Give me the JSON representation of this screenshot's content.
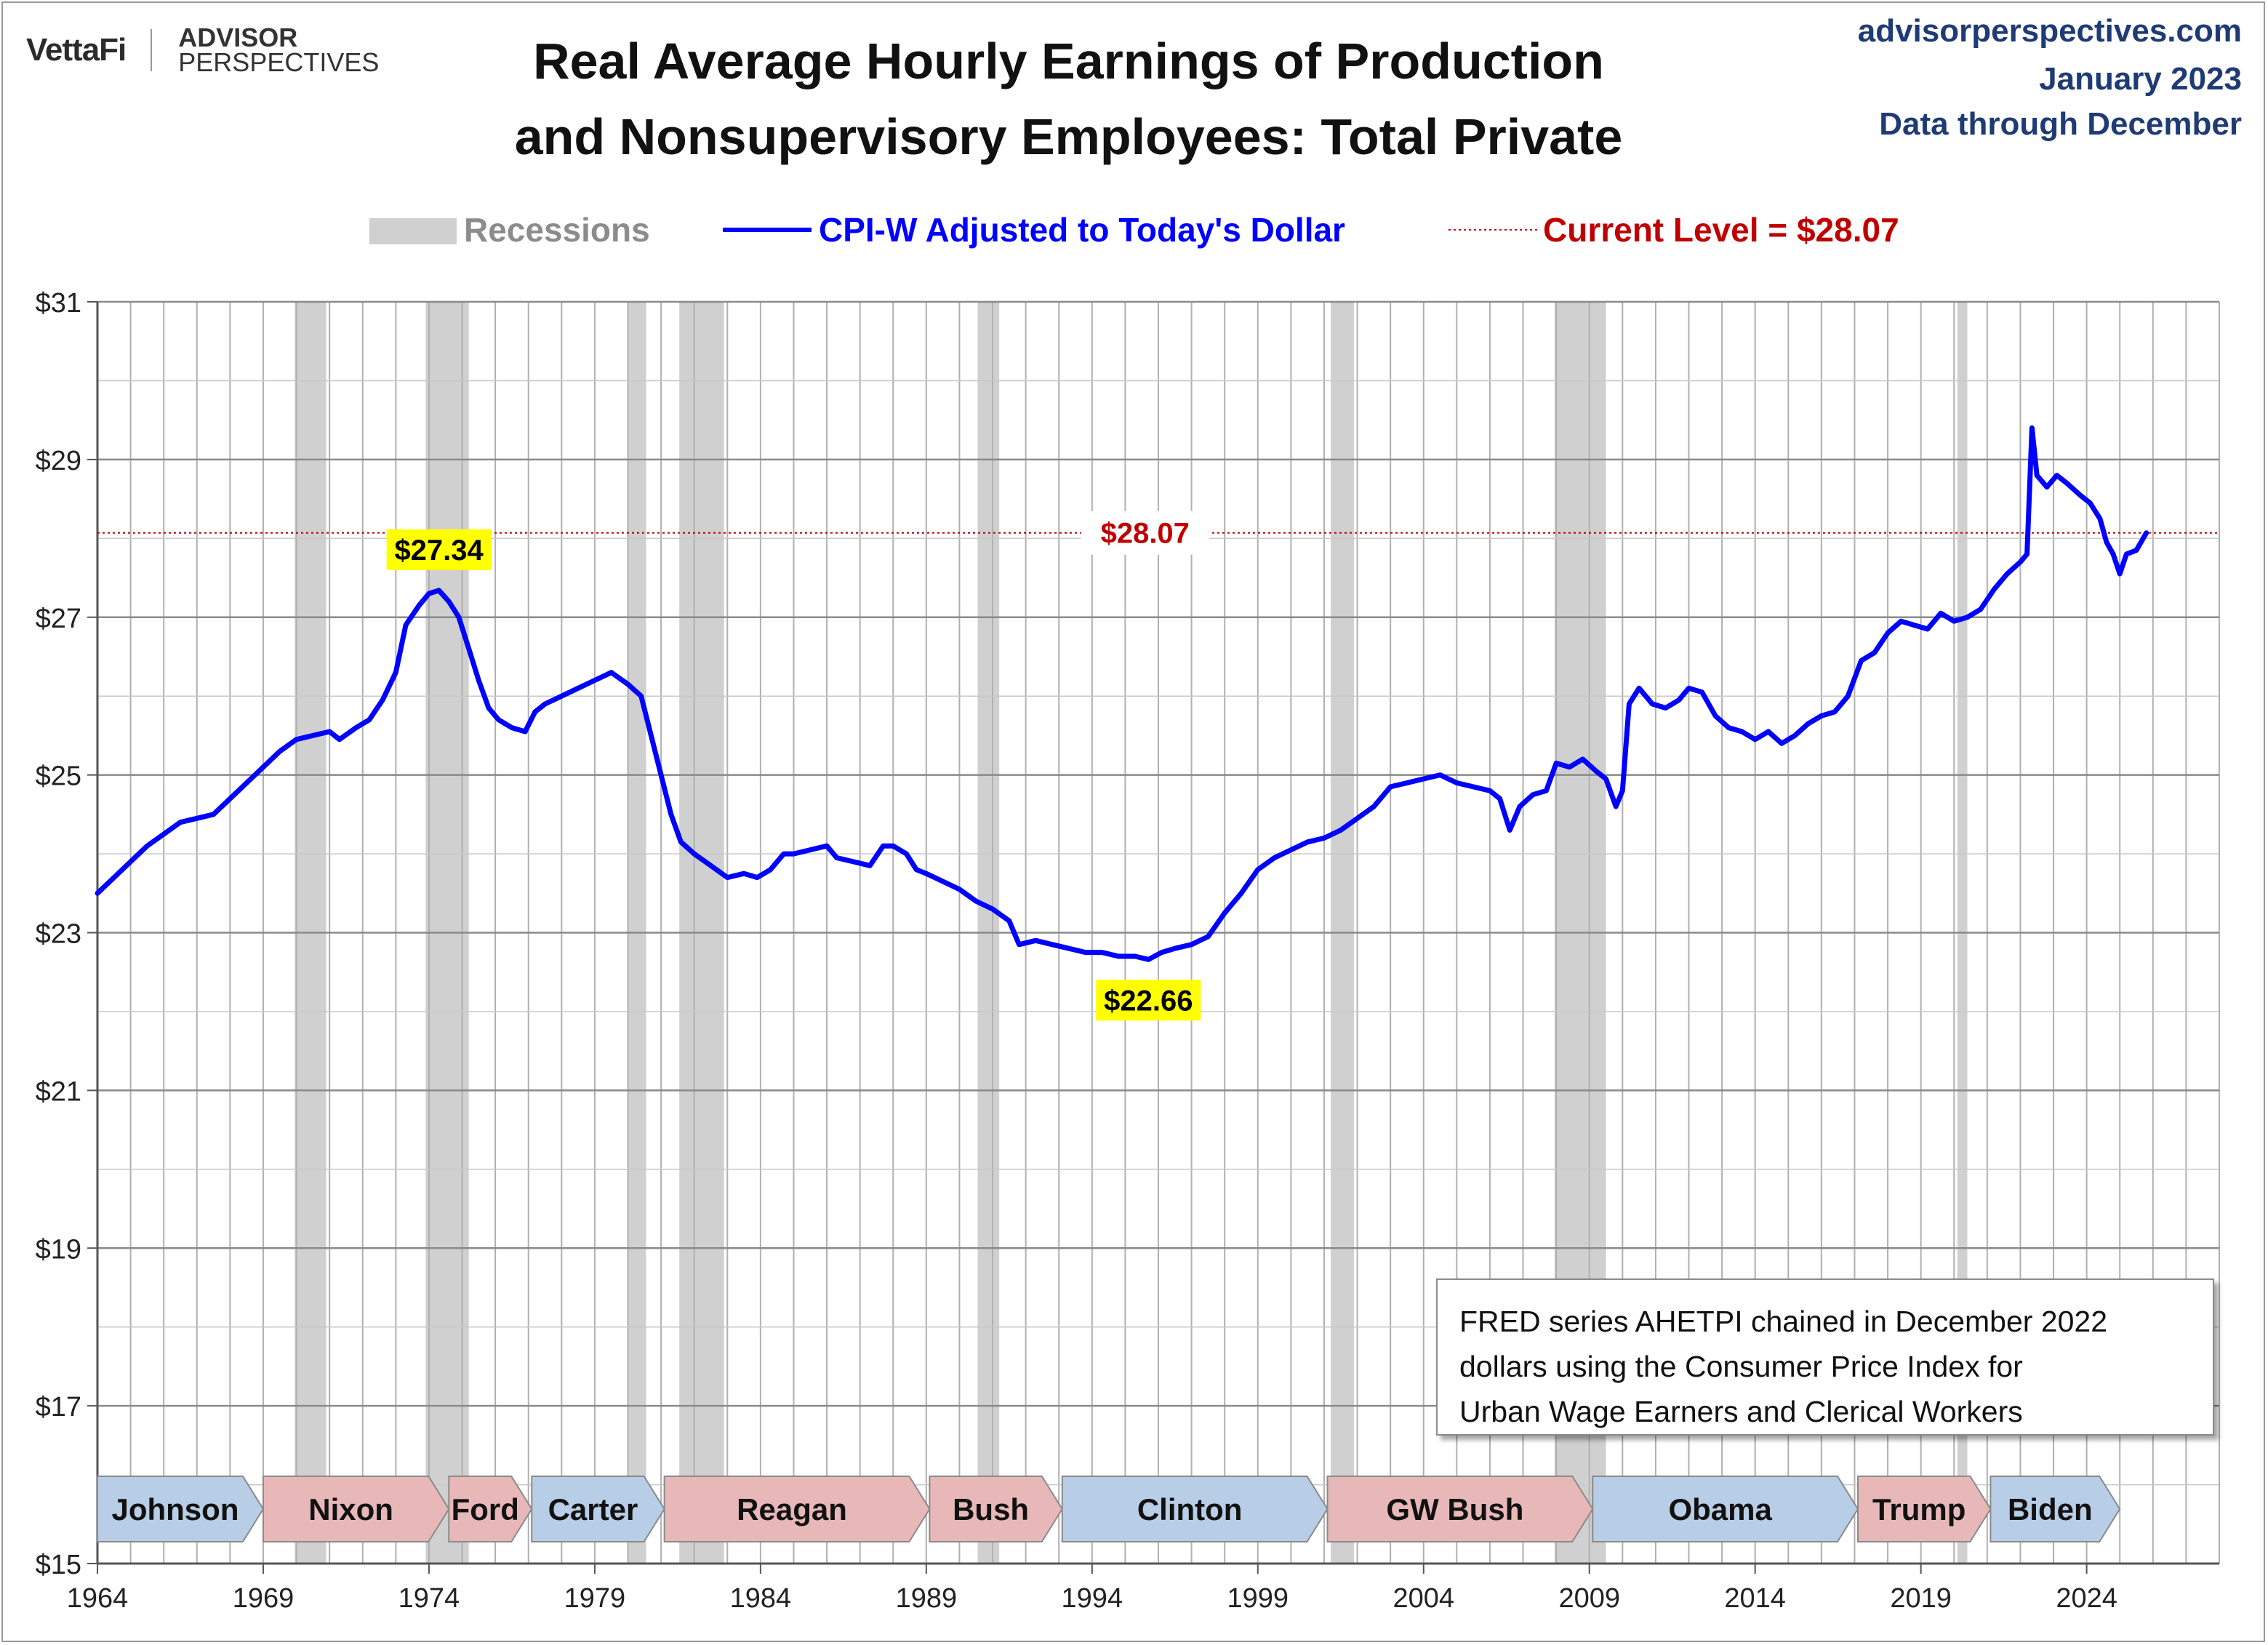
{
  "header": {
    "logo_primary": "VettaFi",
    "logo_secondary_line1": "ADVISOR",
    "logo_secondary_line2": "PERSPECTIVES",
    "title_line1": "Real Average Hourly Earnings of Production",
    "title_line2": "and Nonsupervisory Employees: Total Private",
    "source_site": "advisorperspectives.com",
    "source_date": "January 2023",
    "source_through": "Data through December"
  },
  "legend": {
    "recessions": "Recessions",
    "series": "CPI-W Adjusted to Today's Dollar",
    "current": "Current Level = $28.07"
  },
  "footnote": {
    "line1": "FRED series AHETPI chained in December 2022",
    "line2": "dollars using the Consumer Price Index for",
    "line3": "Urban Wage Earners and Clerical Workers"
  },
  "colors": {
    "series": "#0000ff",
    "current": "#c00000",
    "recession": "#d0d0d0",
    "grid": "#b0b0b0",
    "republican": "#e8b8b8",
    "democrat": "#b8cde6",
    "label_highlight": "#ffff00"
  },
  "chart_data": {
    "type": "line",
    "xlim": [
      1964,
      2028
    ],
    "ylim": [
      15,
      31
    ],
    "x_ticks": [
      "1964",
      "1969",
      "1974",
      "1979",
      "1984",
      "1989",
      "1994",
      "1999",
      "2004",
      "2009",
      "2014",
      "2019",
      "2024"
    ],
    "y_ticks": [
      "$15",
      "$17",
      "$19",
      "$21",
      "$23",
      "$25",
      "$27",
      "$29",
      "$31"
    ],
    "grid": true,
    "legend_position": "top",
    "series": [
      {
        "name": "CPI-W Adjusted to Today's Dollar",
        "points": [
          [
            1964.0,
            23.5
          ],
          [
            1964.5,
            23.7
          ],
          [
            1965.0,
            23.9
          ],
          [
            1965.5,
            24.1
          ],
          [
            1966.0,
            24.25
          ],
          [
            1966.5,
            24.4
          ],
          [
            1967.0,
            24.45
          ],
          [
            1967.5,
            24.5
          ],
          [
            1968.0,
            24.7
          ],
          [
            1968.5,
            24.9
          ],
          [
            1969.0,
            25.1
          ],
          [
            1969.5,
            25.3
          ],
          [
            1970.0,
            25.45
          ],
          [
            1970.5,
            25.5
          ],
          [
            1971.0,
            25.55
          ],
          [
            1971.3,
            25.45
          ],
          [
            1971.8,
            25.6
          ],
          [
            1972.2,
            25.7
          ],
          [
            1972.6,
            25.95
          ],
          [
            1973.0,
            26.3
          ],
          [
            1973.3,
            26.9
          ],
          [
            1973.7,
            27.15
          ],
          [
            1974.0,
            27.3
          ],
          [
            1974.3,
            27.34
          ],
          [
            1974.6,
            27.2
          ],
          [
            1974.9,
            27.0
          ],
          [
            1975.2,
            26.6
          ],
          [
            1975.5,
            26.2
          ],
          [
            1975.8,
            25.85
          ],
          [
            1976.1,
            25.7
          ],
          [
            1976.5,
            25.6
          ],
          [
            1976.9,
            25.55
          ],
          [
            1977.2,
            25.8
          ],
          [
            1977.5,
            25.9
          ],
          [
            1978.0,
            26.0
          ],
          [
            1978.5,
            26.1
          ],
          [
            1979.0,
            26.2
          ],
          [
            1979.5,
            26.3
          ],
          [
            1980.0,
            26.15
          ],
          [
            1980.4,
            26.0
          ],
          [
            1980.7,
            25.5
          ],
          [
            1981.0,
            25.0
          ],
          [
            1981.3,
            24.5
          ],
          [
            1981.6,
            24.15
          ],
          [
            1982.0,
            24.0
          ],
          [
            1982.5,
            23.85
          ],
          [
            1983.0,
            23.7
          ],
          [
            1983.5,
            23.75
          ],
          [
            1983.9,
            23.7
          ],
          [
            1984.3,
            23.8
          ],
          [
            1984.7,
            24.0
          ],
          [
            1985.0,
            24.0
          ],
          [
            1985.5,
            24.05
          ],
          [
            1986.0,
            24.1
          ],
          [
            1986.3,
            23.95
          ],
          [
            1986.8,
            23.9
          ],
          [
            1987.3,
            23.85
          ],
          [
            1987.7,
            24.1
          ],
          [
            1988.0,
            24.1
          ],
          [
            1988.4,
            24.0
          ],
          [
            1988.7,
            23.8
          ],
          [
            1989.0,
            23.75
          ],
          [
            1989.5,
            23.65
          ],
          [
            1990.0,
            23.55
          ],
          [
            1990.5,
            23.4
          ],
          [
            1991.0,
            23.3
          ],
          [
            1991.5,
            23.15
          ],
          [
            1991.8,
            22.85
          ],
          [
            1992.3,
            22.9
          ],
          [
            1992.8,
            22.85
          ],
          [
            1993.3,
            22.8
          ],
          [
            1993.8,
            22.75
          ],
          [
            1994.3,
            22.75
          ],
          [
            1994.8,
            22.7
          ],
          [
            1995.3,
            22.7
          ],
          [
            1995.7,
            22.66
          ],
          [
            1996.1,
            22.75
          ],
          [
            1996.5,
            22.8
          ],
          [
            1997.0,
            22.85
          ],
          [
            1997.5,
            22.95
          ],
          [
            1998.0,
            23.25
          ],
          [
            1998.5,
            23.5
          ],
          [
            1999.0,
            23.8
          ],
          [
            1999.5,
            23.95
          ],
          [
            2000.0,
            24.05
          ],
          [
            2000.5,
            24.15
          ],
          [
            2001.0,
            24.2
          ],
          [
            2001.5,
            24.3
          ],
          [
            2002.0,
            24.45
          ],
          [
            2002.5,
            24.6
          ],
          [
            2003.0,
            24.85
          ],
          [
            2003.5,
            24.9
          ],
          [
            2004.0,
            24.95
          ],
          [
            2004.5,
            25.0
          ],
          [
            2005.0,
            24.9
          ],
          [
            2005.5,
            24.85
          ],
          [
            2006.0,
            24.8
          ],
          [
            2006.3,
            24.7
          ],
          [
            2006.6,
            24.3
          ],
          [
            2006.9,
            24.6
          ],
          [
            2007.3,
            24.75
          ],
          [
            2007.7,
            24.8
          ],
          [
            2008.0,
            25.15
          ],
          [
            2008.4,
            25.1
          ],
          [
            2008.8,
            25.2
          ],
          [
            2009.2,
            25.05
          ],
          [
            2009.5,
            24.95
          ],
          [
            2009.8,
            24.6
          ],
          [
            2010.0,
            24.8
          ],
          [
            2010.2,
            25.9
          ],
          [
            2010.5,
            26.1
          ],
          [
            2010.9,
            25.9
          ],
          [
            2011.3,
            25.85
          ],
          [
            2011.7,
            25.95
          ],
          [
            2012.0,
            26.1
          ],
          [
            2012.4,
            26.05
          ],
          [
            2012.8,
            25.75
          ],
          [
            2013.2,
            25.6
          ],
          [
            2013.6,
            25.55
          ],
          [
            2014.0,
            25.45
          ],
          [
            2014.4,
            25.55
          ],
          [
            2014.8,
            25.4
          ],
          [
            2015.2,
            25.5
          ],
          [
            2015.6,
            25.65
          ],
          [
            2016.0,
            25.75
          ],
          [
            2016.4,
            25.8
          ],
          [
            2016.8,
            26.0
          ],
          [
            2017.2,
            26.45
          ],
          [
            2017.6,
            26.55
          ],
          [
            2018.0,
            26.8
          ],
          [
            2018.4,
            26.95
          ],
          [
            2018.8,
            26.9
          ],
          [
            2019.2,
            26.85
          ],
          [
            2019.6,
            27.05
          ],
          [
            2020.0,
            26.95
          ],
          [
            2020.4,
            27.0
          ],
          [
            2020.8,
            27.1
          ],
          [
            2021.2,
            27.35
          ],
          [
            2021.6,
            27.55
          ],
          [
            2022.0,
            27.7
          ],
          [
            2022.2,
            27.8
          ],
          [
            2022.35,
            29.4
          ],
          [
            2022.5,
            28.8
          ],
          [
            2022.8,
            28.65
          ],
          [
            2023.1,
            28.8
          ],
          [
            2023.4,
            28.7
          ],
          [
            2023.8,
            28.55
          ],
          [
            2024.1,
            28.45
          ],
          [
            2024.4,
            28.25
          ],
          [
            2024.6,
            27.95
          ],
          [
            2024.8,
            27.8
          ],
          [
            2025.0,
            27.55
          ],
          [
            2025.2,
            27.8
          ],
          [
            2025.5,
            27.85
          ],
          [
            2025.8,
            28.07
          ]
        ]
      }
    ],
    "current_level": 28.07,
    "current_label": "$28.07",
    "annotations": [
      {
        "label": "$27.34",
        "x": 1974.3,
        "y": 27.34
      },
      {
        "label": "$22.66",
        "x": 1995.7,
        "y": 22.66
      }
    ],
    "recessions": [
      [
        1969.95,
        1970.9
      ],
      [
        1973.9,
        1975.2
      ],
      [
        1980.0,
        1980.55
      ],
      [
        1981.55,
        1982.9
      ],
      [
        1990.55,
        1991.2
      ],
      [
        2001.2,
        2001.9
      ],
      [
        2007.95,
        2009.5
      ],
      [
        2020.1,
        2020.4
      ]
    ],
    "presidents": [
      {
        "name": "Johnson",
        "start": 1964.0,
        "end": 1969.0,
        "party": "D"
      },
      {
        "name": "Nixon",
        "start": 1969.0,
        "end": 1974.6,
        "party": "R"
      },
      {
        "name": "Ford",
        "start": 1974.6,
        "end": 1977.1,
        "party": "R"
      },
      {
        "name": "Carter",
        "start": 1977.1,
        "end": 1981.1,
        "party": "D"
      },
      {
        "name": "Reagan",
        "start": 1981.1,
        "end": 1989.1,
        "party": "R"
      },
      {
        "name": "Bush",
        "start": 1989.1,
        "end": 1993.1,
        "party": "R"
      },
      {
        "name": "Clinton",
        "start": 1993.1,
        "end": 2001.1,
        "party": "D"
      },
      {
        "name": "GW Bush",
        "start": 2001.1,
        "end": 2009.1,
        "party": "R"
      },
      {
        "name": "Obama",
        "start": 2009.1,
        "end": 2017.1,
        "party": "D"
      },
      {
        "name": "Trump",
        "start": 2017.1,
        "end": 2021.1,
        "party": "R"
      },
      {
        "name": "Biden",
        "start": 2021.1,
        "end": 2025.0,
        "party": "D"
      }
    ]
  }
}
